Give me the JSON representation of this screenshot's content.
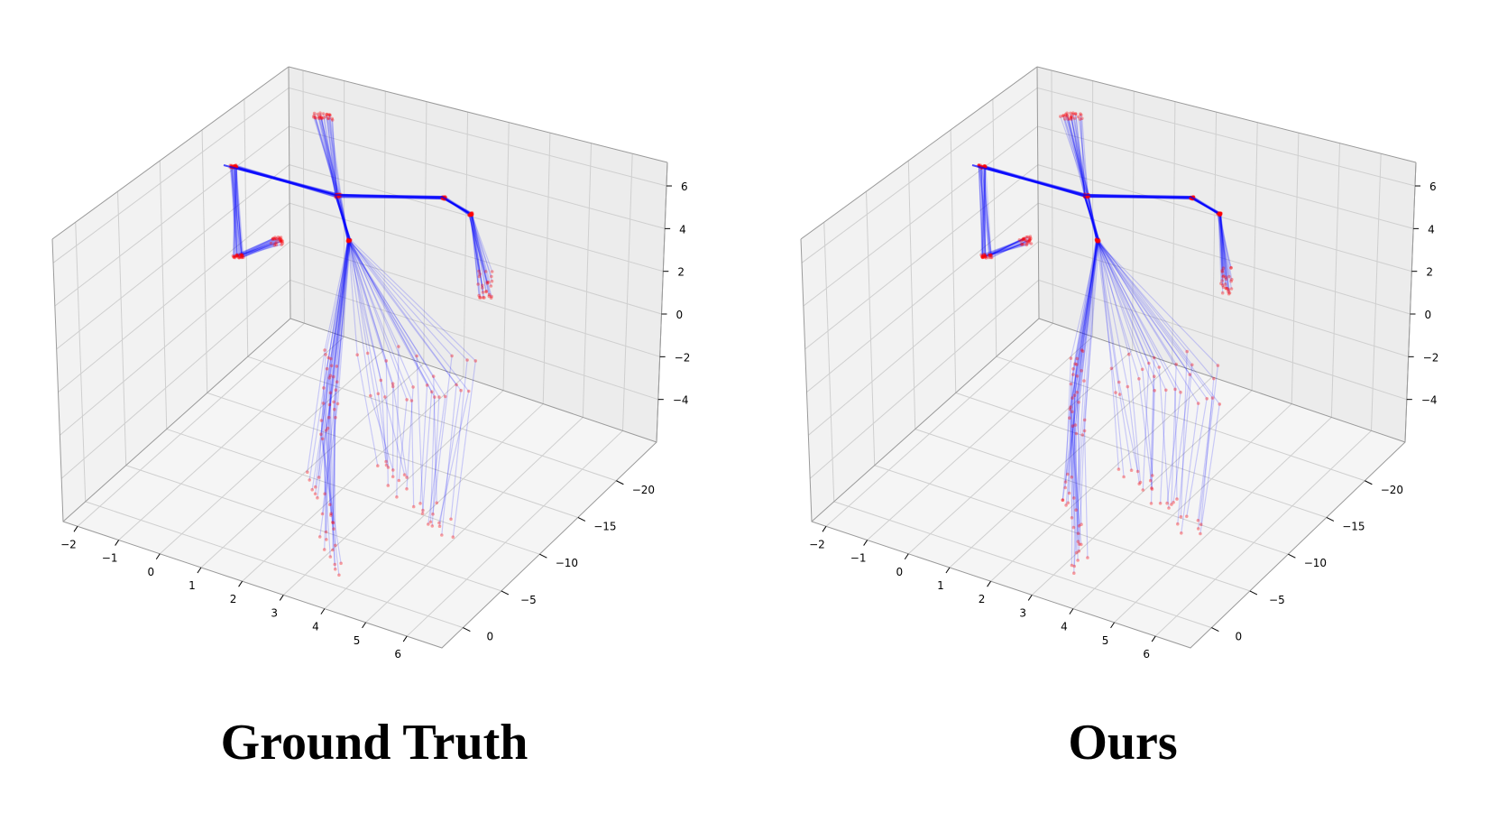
{
  "chart_data": [
    {
      "type": "3d-line",
      "caption": "Ground Truth",
      "x_ticks": [
        "−2",
        "−1",
        "0",
        "1",
        "2",
        "3",
        "4",
        "5",
        "6"
      ],
      "y_ticks": [
        "0",
        "−5",
        "−10",
        "−15",
        "−20"
      ],
      "z_ticks": [
        "6",
        "4",
        "2",
        "0",
        "−2",
        "−4"
      ],
      "xlim": [
        -2,
        6
      ],
      "ylim": [
        -20,
        0
      ],
      "zlim": [
        -5,
        6
      ],
      "grid": true,
      "colors": {
        "bones": "#0000ff",
        "joints": "#ff0000"
      }
    },
    {
      "type": "3d-line",
      "caption": "Ours",
      "x_ticks": [
        "−2",
        "−1",
        "0",
        "1",
        "2",
        "3",
        "4",
        "5",
        "6"
      ],
      "y_ticks": [
        "0",
        "−5",
        "−10",
        "−15",
        "−20"
      ],
      "z_ticks": [
        "6",
        "4",
        "2",
        "0",
        "−2",
        "−4"
      ],
      "xlim": [
        -2,
        6
      ],
      "ylim": [
        -20,
        0
      ],
      "zlim": [
        -5,
        6
      ],
      "grid": true,
      "colors": {
        "bones": "#0000ff",
        "joints": "#ff0000"
      }
    }
  ]
}
